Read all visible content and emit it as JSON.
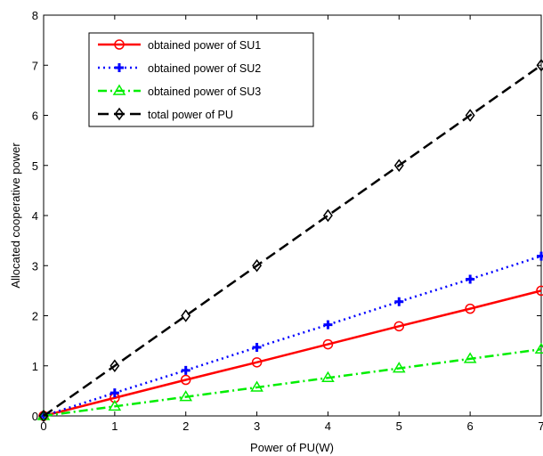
{
  "chart_data": {
    "type": "line",
    "title": "",
    "xlabel": "Power of PU(W)",
    "ylabel": "Allocated cooperative power",
    "xlim": [
      0,
      7
    ],
    "ylim": [
      0,
      8
    ],
    "x_ticks": [
      "0",
      "1",
      "2",
      "3",
      "4",
      "5",
      "6",
      "7"
    ],
    "y_ticks": [
      "0",
      "1",
      "2",
      "3",
      "4",
      "5",
      "6",
      "7",
      "8"
    ],
    "grid": false,
    "legend_position": "top-left",
    "x": [
      0,
      1,
      2,
      3,
      4,
      5,
      6,
      7
    ],
    "series": [
      {
        "name": "obtained power of SU1",
        "values": [
          0,
          0.36,
          0.72,
          1.07,
          1.43,
          1.79,
          2.14,
          2.5
        ],
        "color": "#ff0000",
        "line_style": "solid",
        "marker": "circle"
      },
      {
        "name": "obtained power of SU2",
        "values": [
          0,
          0.46,
          0.91,
          1.37,
          1.82,
          2.28,
          2.73,
          3.19
        ],
        "color": "#0000ff",
        "line_style": "dotted",
        "marker": "plus"
      },
      {
        "name": "obtained power of SU3",
        "values": [
          0,
          0.19,
          0.38,
          0.57,
          0.76,
          0.95,
          1.14,
          1.33
        ],
        "color": "#00ee00",
        "line_style": "dash-dot",
        "marker": "triangle"
      },
      {
        "name": "total power of PU",
        "values": [
          0,
          1,
          2,
          3,
          4,
          5,
          6,
          7
        ],
        "color": "#000000",
        "line_style": "dashed",
        "marker": "diamond"
      }
    ]
  }
}
